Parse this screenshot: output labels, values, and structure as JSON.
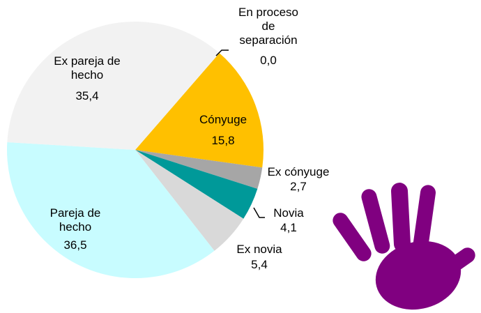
{
  "chart_data": {
    "type": "pie",
    "categories": [
      "Cónyuge",
      "Ex cónyuge",
      "Novia",
      "Ex novia",
      "Pareja de\nhecho",
      "Ex pareja de\nhecho",
      "En proceso\nde\nseparación"
    ],
    "values": [
      15.8,
      2.7,
      4.1,
      5.4,
      36.5,
      35.4,
      0.0
    ],
    "value_labels": [
      "15,8",
      "2,7",
      "4,1",
      "5,4",
      "36,5",
      "35,4",
      "0,0"
    ],
    "colors": [
      "#ffc000",
      "#a6a6a6",
      "#009999",
      "#d9d9d9",
      "#c8fcff",
      "#f2f2f2",
      "#7f7f7f"
    ]
  }
}
